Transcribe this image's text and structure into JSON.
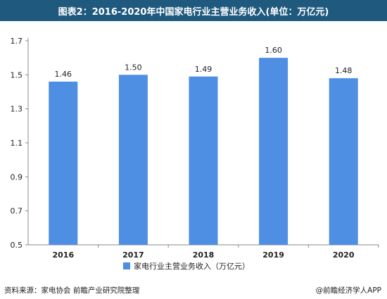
{
  "title": "图表2：2016-2020年中国家电行业主营业务收入(单位：万亿元)",
  "footer": {
    "source": "资料来源：家电协会 前瞻产业研究院整理",
    "brand": "@前瞻经济学人APP"
  },
  "colors": {
    "title_bg": "#1f5a7e",
    "bar": "#4e8ee3",
    "axis": "#888888",
    "text": "#222222"
  },
  "chart_data": {
    "type": "bar",
    "categories": [
      "2016",
      "2017",
      "2018",
      "2019",
      "2020"
    ],
    "series": [
      {
        "name": "家电行业主营业务收入（万亿元）",
        "values": [
          1.46,
          1.5,
          1.49,
          1.6,
          1.48
        ]
      }
    ],
    "data_labels": [
      "1.46",
      "1.50",
      "1.49",
      "1.60",
      "1.48"
    ],
    "yticks": [
      "0.5",
      "0.7",
      "0.9",
      "1.1",
      "1.3",
      "1.5",
      "1.7"
    ],
    "ylim": [
      0.5,
      1.7
    ],
    "xlabel": "",
    "ylabel": "",
    "grid": false,
    "legend_position": "bottom-center"
  }
}
